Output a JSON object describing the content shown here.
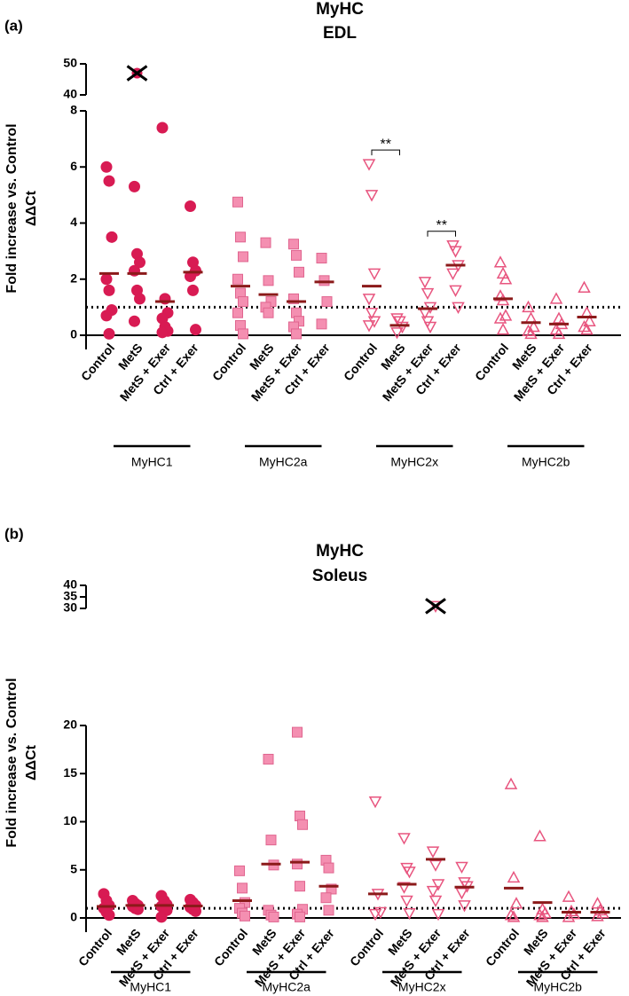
{
  "chart_data": [
    {
      "type": "dot",
      "panel": "(a)",
      "title": [
        "MyHC",
        "EDL"
      ],
      "ylabel": [
        "Fold increase vs. Control",
        "ΔΔCt"
      ],
      "categories": [
        "Control",
        "MetS",
        "MetS + Exer",
        "Ctrl + Exer"
      ],
      "ylim": [
        0,
        8
      ],
      "yticks": [
        0,
        2,
        4,
        6,
        8
      ],
      "ylim_upper": [
        40,
        50
      ],
      "yticks_upper": [
        40,
        50
      ],
      "reference_line": 1,
      "mean_color": "#8b1a1a",
      "series": [
        {
          "name": "MyHC1",
          "color": "#d81b53",
          "marker": "circle",
          "filled": true,
          "values": [
            [
              6.0,
              5.5,
              3.5,
              2.0,
              1.6,
              0.9,
              0.7,
              0.05
            ],
            [
              5.3,
              2.9,
              2.6,
              2.3,
              1.6,
              1.3,
              0.5
            ],
            [
              7.4,
              1.3,
              0.8,
              0.6,
              0.3,
              0.15,
              0.1
            ],
            [
              4.6,
              2.6,
              2.3,
              2.1,
              1.6,
              0.2
            ]
          ],
          "excluded": [
            [],
            [
              47
            ],
            [],
            []
          ],
          "means": [
            2.2,
            2.2,
            1.2,
            2.25
          ]
        },
        {
          "name": "MyHC2a",
          "color": "#f48fb1",
          "marker": "square",
          "filled": true,
          "values": [
            [
              4.75,
              3.5,
              2.8,
              2.0,
              1.5,
              1.2,
              0.8,
              0.35,
              0.05
            ],
            [
              3.3,
              1.95,
              1.2,
              1.0,
              0.8
            ],
            [
              3.25,
              2.85,
              2.25,
              1.3,
              0.8,
              0.5,
              0.3,
              0.05
            ],
            [
              2.75,
              1.95,
              1.2,
              0.4
            ]
          ],
          "excluded": [
            [],
            [],
            [],
            []
          ],
          "means": [
            1.75,
            1.45,
            1.2,
            1.9
          ]
        },
        {
          "name": "MyHC2x",
          "color": "#e8557f",
          "marker": "triangle-down",
          "filled": false,
          "values": [
            [
              6.1,
              5.0,
              2.2,
              1.3,
              0.8,
              0.5,
              0.35
            ],
            [
              0.6,
              0.5,
              0.3,
              0.1
            ],
            [
              1.9,
              1.5,
              1.0,
              0.8,
              0.5,
              0.3
            ],
            [
              3.2,
              3.0,
              2.5,
              2.2,
              1.6,
              1.0
            ]
          ],
          "excluded": [
            [],
            [],
            [],
            []
          ],
          "means": [
            1.75,
            0.35,
            0.95,
            2.5
          ]
        },
        {
          "name": "MyHC2b",
          "color": "#e8557f",
          "marker": "triangle-up",
          "filled": false,
          "values": [
            [
              2.6,
              2.2,
              2.0,
              1.4,
              1.25,
              0.7,
              0.6,
              0.2
            ],
            [
              1.0,
              0.6,
              0.3,
              0.15,
              0.05
            ],
            [
              1.3,
              0.6,
              0.4,
              0.2,
              0.05
            ],
            [
              1.7,
              0.8,
              0.5,
              0.3,
              0.2
            ]
          ],
          "excluded": [
            [],
            [],
            [],
            []
          ],
          "means": [
            1.3,
            0.45,
            0.4,
            0.65
          ]
        }
      ],
      "significance": [
        {
          "label": "**",
          "series": "MyHC2x",
          "between": [
            "Control",
            "MetS"
          ]
        },
        {
          "label": "**",
          "series": "MyHC2x",
          "between": [
            "MetS + Exer",
            "Ctrl + Exer"
          ]
        }
      ]
    },
    {
      "type": "dot",
      "panel": "(b)",
      "title": [
        "MyHC",
        "Soleus"
      ],
      "ylabel": [
        "Fold increase vs. Control",
        "ΔΔCt"
      ],
      "categories": [
        "Control",
        "MetS",
        "MetS + Exer",
        "Ctrl + Exer"
      ],
      "ylim": [
        0,
        20
      ],
      "yticks": [
        0,
        5,
        10,
        15,
        20
      ],
      "ylim_upper": [
        30,
        40
      ],
      "yticks_upper": [
        30,
        35,
        40
      ],
      "reference_line": 1,
      "mean_color": "#8b1a1a",
      "series": [
        {
          "name": "MyHC1",
          "color": "#d81b53",
          "marker": "circle",
          "filled": true,
          "values": [
            [
              2.5,
              1.8,
              1.3,
              1.0,
              0.6,
              0.3
            ],
            [
              1.8,
              1.5,
              1.3,
              1.2,
              1.0,
              0.9
            ],
            [
              2.3,
              1.8,
              1.4,
              1.2,
              1.0,
              0.8,
              0.1
            ],
            [
              1.9,
              1.6,
              1.3,
              1.1,
              0.9,
              0.7
            ]
          ],
          "excluded": [
            [],
            [],
            [],
            []
          ],
          "means": [
            1.2,
            1.3,
            1.3,
            1.25
          ]
        },
        {
          "name": "MyHC2a",
          "color": "#f48fb1",
          "marker": "square",
          "filled": true,
          "values": [
            [
              4.9,
              3.1,
              1.6,
              1.0,
              0.5,
              0.2
            ],
            [
              16.5,
              8.1,
              5.5,
              0.8,
              0.3,
              0.1
            ],
            [
              19.3,
              10.6,
              9.7,
              5.6,
              3.3,
              0.9,
              0.4,
              0.1
            ],
            [
              6.0,
              5.2,
              3.0,
              2.1,
              0.8
            ]
          ],
          "excluded": [
            [],
            [],
            [],
            []
          ],
          "means": [
            1.8,
            5.6,
            5.8,
            3.3
          ]
        },
        {
          "name": "MyHC2x",
          "color": "#e8557f",
          "marker": "triangle-down",
          "filled": false,
          "values": [
            [
              12.1,
              2.5,
              0.6,
              0.4
            ],
            [
              8.3,
              5.2,
              4.8,
              3.2,
              1.8,
              0.5
            ],
            [
              6.9,
              5.5,
              3.5,
              2.8,
              1.8,
              0.4
            ],
            [
              5.3,
              3.7,
              3.3,
              2.6,
              1.3
            ]
          ],
          "excluded": [
            [],
            [],
            [
              31
            ],
            []
          ],
          "means": [
            2.5,
            3.5,
            6.1,
            3.2
          ]
        },
        {
          "name": "MyHC2b",
          "color": "#e8557f",
          "marker": "triangle-up",
          "filled": false,
          "values": [
            [
              13.9,
              4.2,
              1.5,
              0.3,
              0.1
            ],
            [
              8.5,
              0.9,
              0.5,
              0.3,
              0.1
            ],
            [
              2.2,
              0.7,
              0.4,
              0.1
            ],
            [
              1.5,
              0.8,
              0.5,
              0.2
            ]
          ],
          "excluded": [
            [],
            [],
            [],
            []
          ],
          "means": [
            3.1,
            1.6,
            0.6,
            0.6
          ]
        }
      ],
      "significance": []
    }
  ]
}
